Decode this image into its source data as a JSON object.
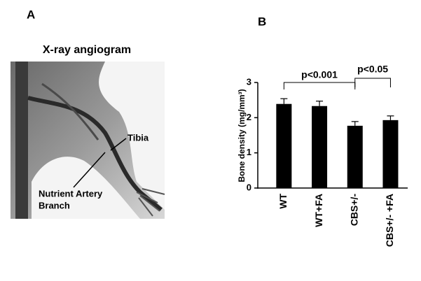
{
  "panel_a": {
    "label": "A",
    "title": "X-ray angiogram",
    "annotations": {
      "tibia": "Tibia",
      "artery": [
        "Nutrient Artery",
        "Branch"
      ]
    }
  },
  "chart_data": {
    "type": "bar",
    "label": "B",
    "ylabel": "Bone density (mg/mm³)",
    "categories": [
      "WT",
      "WT+FA",
      "CBS+/-",
      "CBS+/- +FA"
    ],
    "values": [
      2.39,
      2.33,
      1.77,
      1.93
    ],
    "errors": [
      0.15,
      0.14,
      0.12,
      0.12
    ],
    "color": "#000000",
    "ylim": [
      0,
      3
    ],
    "yticks": [
      0,
      1,
      2,
      3
    ],
    "annotations": [
      "p<0.001",
      "p<0.05"
    ]
  }
}
